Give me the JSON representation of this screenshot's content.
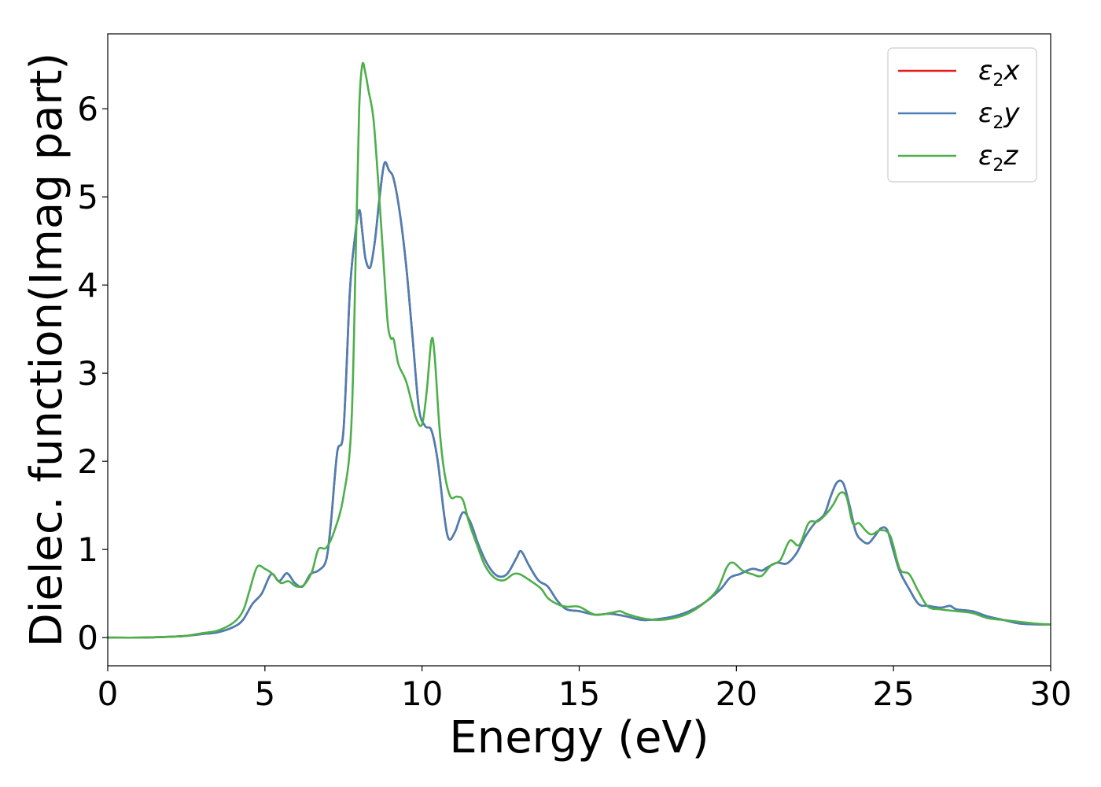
{
  "chart_data": {
    "type": "line",
    "title": "",
    "xlabel": "Energy (eV)",
    "ylabel": "Dielec. function(Imag part)",
    "xlim": [
      0,
      30
    ],
    "ylim": [
      -0.32,
      6.85
    ],
    "xticks": [
      0,
      5,
      10,
      15,
      20,
      25,
      30
    ],
    "xtick_labels": [
      "0",
      "5",
      "10",
      "15",
      "20",
      "25",
      "30"
    ],
    "yticks": [
      0,
      1,
      2,
      3,
      4,
      5,
      6
    ],
    "ytick_labels": [
      "0",
      "1",
      "2",
      "3",
      "4",
      "5",
      "6"
    ],
    "grid": false,
    "legend_position": "top-right",
    "series": [
      {
        "name": "ε2x",
        "name_base": "ε",
        "name_sub": "2",
        "name_tail": "x",
        "color": "#e41a1c",
        "x": [
          0,
          1,
          2,
          2.5,
          3,
          3.5,
          4,
          4.3,
          4.6,
          4.9,
          5.2,
          5.45,
          5.7,
          5.95,
          6.2,
          6.45,
          6.7,
          6.95,
          7.1,
          7.3,
          7.5,
          7.7,
          7.85,
          8.0,
          8.1,
          8.2,
          8.35,
          8.5,
          8.65,
          8.8,
          8.95,
          9.1,
          9.3,
          9.5,
          9.7,
          9.9,
          10.1,
          10.3,
          10.5,
          10.7,
          10.85,
          11.05,
          11.3,
          11.55,
          11.8,
          12.1,
          12.4,
          12.7,
          13.0,
          13.15,
          13.4,
          13.7,
          14.0,
          14.3,
          14.6,
          15.0,
          15.5,
          16.0,
          16.5,
          17.0,
          17.5,
          18.0,
          18.5,
          19.0,
          19.5,
          19.8,
          20.1,
          20.5,
          20.8,
          21.0,
          21.3,
          21.6,
          21.9,
          22.2,
          22.5,
          22.8,
          23.0,
          23.2,
          23.4,
          23.6,
          23.8,
          24.0,
          24.2,
          24.4,
          24.6,
          24.8,
          25.0,
          25.2,
          25.5,
          25.8,
          26.1,
          26.5,
          26.8,
          27.0,
          27.5,
          28.0,
          28.5,
          29.0,
          29.5,
          30.0
        ],
        "y": [
          0.0,
          0.0,
          0.01,
          0.02,
          0.04,
          0.06,
          0.12,
          0.2,
          0.38,
          0.5,
          0.72,
          0.64,
          0.73,
          0.62,
          0.58,
          0.72,
          0.76,
          0.88,
          1.3,
          2.1,
          2.35,
          3.9,
          4.5,
          4.85,
          4.6,
          4.3,
          4.2,
          4.5,
          5.0,
          5.38,
          5.3,
          5.2,
          4.8,
          4.2,
          3.4,
          2.6,
          2.4,
          2.35,
          2.0,
          1.4,
          1.12,
          1.2,
          1.42,
          1.3,
          1.05,
          0.82,
          0.7,
          0.72,
          0.9,
          0.98,
          0.82,
          0.65,
          0.58,
          0.42,
          0.32,
          0.3,
          0.26,
          0.27,
          0.24,
          0.2,
          0.21,
          0.24,
          0.3,
          0.4,
          0.55,
          0.68,
          0.72,
          0.78,
          0.76,
          0.8,
          0.85,
          0.84,
          0.95,
          1.15,
          1.3,
          1.4,
          1.6,
          1.76,
          1.75,
          1.5,
          1.2,
          1.1,
          1.07,
          1.15,
          1.24,
          1.22,
          0.98,
          0.75,
          0.55,
          0.38,
          0.36,
          0.34,
          0.36,
          0.32,
          0.3,
          0.24,
          0.2,
          0.16,
          0.15,
          0.15
        ]
      },
      {
        "name": "ε2y",
        "name_base": "ε",
        "name_sub": "2",
        "name_tail": "y",
        "color": "#4a7fb5",
        "x": [
          0,
          1,
          2,
          2.5,
          3,
          3.5,
          4,
          4.3,
          4.6,
          4.9,
          5.2,
          5.45,
          5.7,
          5.95,
          6.2,
          6.45,
          6.7,
          6.95,
          7.1,
          7.3,
          7.5,
          7.7,
          7.85,
          8.0,
          8.1,
          8.2,
          8.35,
          8.5,
          8.65,
          8.8,
          8.95,
          9.1,
          9.3,
          9.5,
          9.7,
          9.9,
          10.1,
          10.3,
          10.5,
          10.7,
          10.85,
          11.05,
          11.3,
          11.55,
          11.8,
          12.1,
          12.4,
          12.7,
          13.0,
          13.15,
          13.4,
          13.7,
          14.0,
          14.3,
          14.6,
          15.0,
          15.5,
          16.0,
          16.5,
          17.0,
          17.5,
          18.0,
          18.5,
          19.0,
          19.5,
          19.8,
          20.1,
          20.5,
          20.8,
          21.0,
          21.3,
          21.6,
          21.9,
          22.2,
          22.5,
          22.8,
          23.0,
          23.2,
          23.4,
          23.6,
          23.8,
          24.0,
          24.2,
          24.4,
          24.6,
          24.8,
          25.0,
          25.2,
          25.5,
          25.8,
          26.1,
          26.5,
          26.8,
          27.0,
          27.5,
          28.0,
          28.5,
          29.0,
          29.5,
          30.0
        ],
        "y": [
          0.0,
          0.0,
          0.01,
          0.02,
          0.04,
          0.06,
          0.12,
          0.2,
          0.38,
          0.5,
          0.72,
          0.64,
          0.73,
          0.62,
          0.58,
          0.72,
          0.76,
          0.88,
          1.3,
          2.1,
          2.35,
          3.9,
          4.5,
          4.85,
          4.6,
          4.3,
          4.2,
          4.5,
          5.0,
          5.38,
          5.3,
          5.2,
          4.8,
          4.2,
          3.4,
          2.6,
          2.4,
          2.35,
          2.0,
          1.4,
          1.12,
          1.2,
          1.42,
          1.3,
          1.05,
          0.82,
          0.7,
          0.72,
          0.9,
          0.98,
          0.82,
          0.65,
          0.58,
          0.42,
          0.32,
          0.3,
          0.26,
          0.27,
          0.24,
          0.2,
          0.21,
          0.24,
          0.3,
          0.4,
          0.55,
          0.68,
          0.72,
          0.78,
          0.76,
          0.8,
          0.85,
          0.84,
          0.95,
          1.15,
          1.3,
          1.4,
          1.6,
          1.76,
          1.75,
          1.5,
          1.2,
          1.1,
          1.07,
          1.15,
          1.24,
          1.22,
          0.98,
          0.75,
          0.55,
          0.38,
          0.36,
          0.34,
          0.36,
          0.32,
          0.3,
          0.24,
          0.2,
          0.16,
          0.15,
          0.15
        ]
      },
      {
        "name": "ε2z",
        "name_base": "ε",
        "name_sub": "2",
        "name_tail": "z",
        "color": "#4daf4a",
        "x": [
          0,
          1,
          2,
          2.5,
          3,
          3.5,
          4,
          4.3,
          4.5,
          4.75,
          5.0,
          5.25,
          5.5,
          5.75,
          6.0,
          6.25,
          6.5,
          6.7,
          6.95,
          7.2,
          7.5,
          7.75,
          7.9,
          8.0,
          8.1,
          8.2,
          8.3,
          8.45,
          8.6,
          8.75,
          8.9,
          9.0,
          9.1,
          9.25,
          9.5,
          9.8,
          10.0,
          10.15,
          10.3,
          10.4,
          10.55,
          10.7,
          10.9,
          11.1,
          11.3,
          11.5,
          11.75,
          12.0,
          12.3,
          12.6,
          12.9,
          13.1,
          13.3,
          13.55,
          13.8,
          14.0,
          14.3,
          14.6,
          15.0,
          15.5,
          16.0,
          16.3,
          16.5,
          17.0,
          17.5,
          18.0,
          18.5,
          19.0,
          19.4,
          19.7,
          19.9,
          20.2,
          20.5,
          20.8,
          21.1,
          21.4,
          21.7,
          22.0,
          22.3,
          22.6,
          22.9,
          23.1,
          23.3,
          23.5,
          23.7,
          23.9,
          24.1,
          24.3,
          24.6,
          24.9,
          25.2,
          25.5,
          25.8,
          26.1,
          26.5,
          27.0,
          27.5,
          28.0,
          28.5,
          29.0,
          29.5,
          30.0
        ],
        "y": [
          0.0,
          0.0,
          0.01,
          0.02,
          0.05,
          0.08,
          0.17,
          0.3,
          0.52,
          0.8,
          0.78,
          0.72,
          0.62,
          0.64,
          0.58,
          0.6,
          0.75,
          1.0,
          1.02,
          1.2,
          1.6,
          2.4,
          4.5,
          6.0,
          6.5,
          6.4,
          6.2,
          5.9,
          5.2,
          4.4,
          3.6,
          3.4,
          3.38,
          3.1,
          2.9,
          2.5,
          2.42,
          2.8,
          3.38,
          3.2,
          2.4,
          1.9,
          1.6,
          1.6,
          1.56,
          1.3,
          1.05,
          0.82,
          0.68,
          0.65,
          0.72,
          0.72,
          0.68,
          0.62,
          0.55,
          0.45,
          0.38,
          0.35,
          0.35,
          0.26,
          0.28,
          0.3,
          0.27,
          0.22,
          0.2,
          0.22,
          0.28,
          0.4,
          0.55,
          0.8,
          0.85,
          0.76,
          0.72,
          0.7,
          0.82,
          0.88,
          1.1,
          1.05,
          1.3,
          1.32,
          1.42,
          1.52,
          1.64,
          1.6,
          1.3,
          1.3,
          1.22,
          1.17,
          1.22,
          1.15,
          0.78,
          0.72,
          0.52,
          0.35,
          0.32,
          0.3,
          0.28,
          0.22,
          0.2,
          0.18,
          0.16,
          0.15
        ]
      }
    ]
  }
}
